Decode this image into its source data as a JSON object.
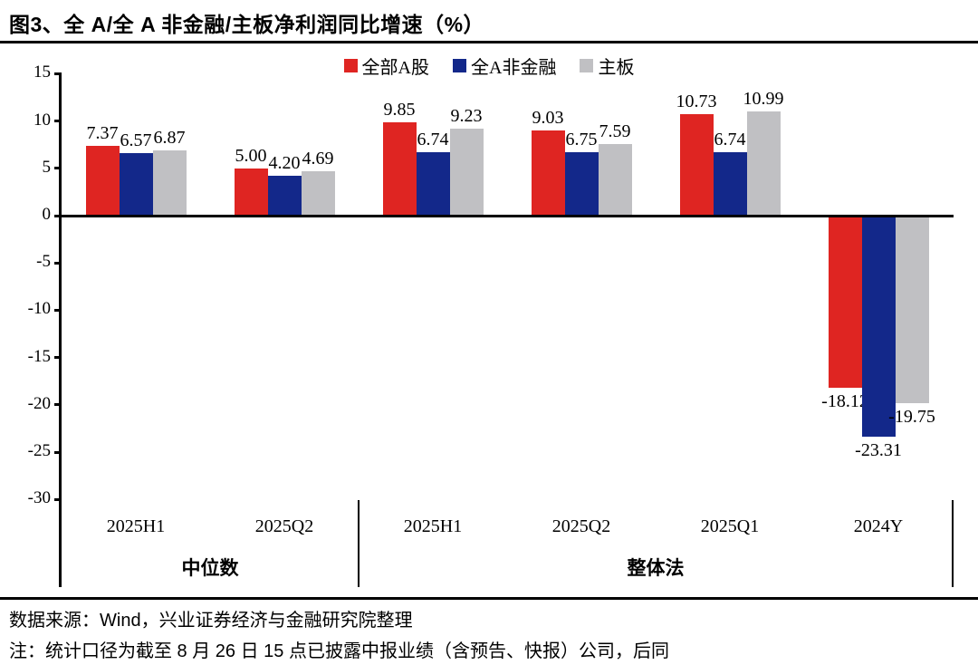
{
  "title": "图3、全 A/全 A 非金融/主板净利润同比增速（%）",
  "chart_data": {
    "type": "bar",
    "title": "全 A/全 A 非金融/主板净利润同比增速（%）",
    "unit": "%",
    "categories": [
      "2025H1",
      "2025Q2",
      "2025H1",
      "2025Q2",
      "2025Q1",
      "2024Y"
    ],
    "category_groups": [
      {
        "label": "中位数",
        "span": [
          0,
          1
        ]
      },
      {
        "label": "整体法",
        "span": [
          2,
          5
        ]
      }
    ],
    "series": [
      {
        "name": "全部A股",
        "color": "#df2522",
        "values": [
          7.37,
          5.0,
          9.85,
          9.03,
          10.73,
          -18.12
        ]
      },
      {
        "name": "全A非金融",
        "color": "#13288a",
        "values": [
          6.57,
          4.2,
          6.74,
          6.75,
          6.74,
          -23.31
        ]
      },
      {
        "name": "主板",
        "color": "#c0c0c3",
        "values": [
          6.87,
          4.69,
          9.23,
          7.59,
          10.99,
          -19.75
        ]
      }
    ],
    "ylim": [
      -30,
      15
    ],
    "yticks": [
      15,
      10,
      5,
      0,
      -5,
      -10,
      -15,
      -20,
      -25,
      -30
    ],
    "value_label_decimals": 2,
    "legend_position": "top",
    "grid": false,
    "axis_color": "#000000"
  },
  "footer": {
    "source": "数据来源：Wind，兴业证券经济与金融研究院整理",
    "note": "注：统计口径为截至 8 月 26 日 15 点已披露中报业绩（含预告、快报）公司，后同"
  }
}
